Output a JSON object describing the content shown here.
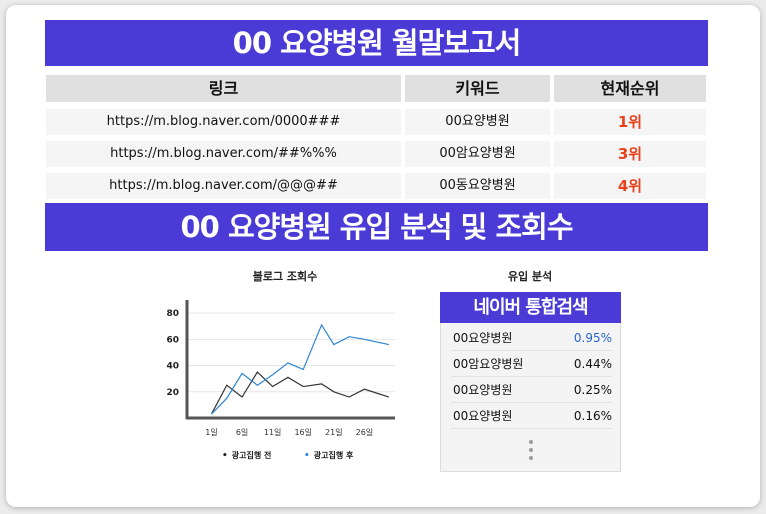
{
  "title": "00 요양병원 월말보고서",
  "table": {
    "headers": [
      "링크",
      "키워드",
      "현재순위"
    ],
    "rows": [
      {
        "link": "https://m.blog.naver.com/0000###",
        "keyword": "00요양병원",
        "rank": "1위"
      },
      {
        "link": "https://m.blog.naver.com/##%%%",
        "keyword": "00암요양병원",
        "rank": "3위"
      },
      {
        "link": "https://m.blog.naver.com/@@@##",
        "keyword": "00동요양병원",
        "rank": "4위"
      }
    ]
  },
  "section2_title": "00 요양병원 유입 분석 및 조회수",
  "chart_title": "블로그 조회수",
  "chart_data": {
    "type": "line",
    "title": "블로그 조회수",
    "x": [
      1,
      3.5,
      6,
      8.5,
      11,
      13.5,
      16,
      19,
      21,
      23.5,
      26,
      30
    ],
    "xticks": [
      "1일",
      "6일",
      "11일",
      "16일",
      "21일",
      "26일"
    ],
    "xtick_values": [
      1,
      6,
      11,
      16,
      21,
      26
    ],
    "yticks": [
      20,
      40,
      60,
      80
    ],
    "ylim": [
      0,
      90
    ],
    "xlim": [
      -3,
      31
    ],
    "series": [
      {
        "name": "광고집행 전",
        "color": "#333333",
        "values": [
          3,
          25,
          16,
          35,
          24,
          31,
          24,
          26,
          20,
          16,
          22,
          16
        ]
      },
      {
        "name": "광고집행 후",
        "color": "#2e86d4",
        "values": [
          3,
          15,
          34,
          25,
          33,
          42,
          37,
          71,
          56,
          62,
          60,
          56
        ]
      }
    ]
  },
  "inflow": {
    "title": "유입 분석",
    "box_label": "네이버 통합검색",
    "rows": [
      {
        "name": "00요양병원",
        "value": "0.95%",
        "highlight": true
      },
      {
        "name": "00암요양병원",
        "value": "0.44%",
        "highlight": false
      },
      {
        "name": "00요양병원",
        "value": "0.25%",
        "highlight": false
      },
      {
        "name": "00요양병원",
        "value": "0.16%",
        "highlight": false
      }
    ]
  }
}
